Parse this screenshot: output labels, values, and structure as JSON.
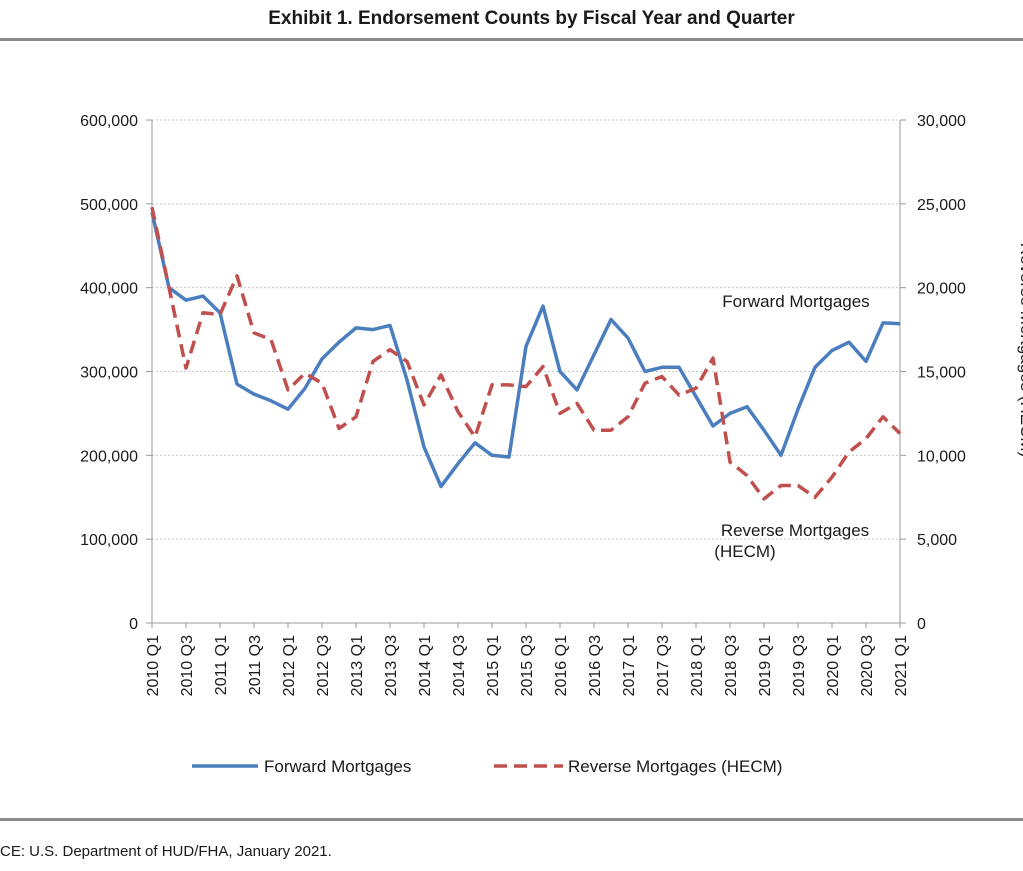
{
  "page": {
    "title": "Exhibit 1. Endorsement Counts by Fiscal Year and Quarter",
    "source": "CE: U.S. Department of HUD/FHA, January 2021."
  },
  "chart_data": {
    "type": "line",
    "title": "Exhibit 1. Endorsement Counts by Fiscal Year and Quarter",
    "x": [
      "2010 Q1",
      "2010 Q2",
      "2010 Q3",
      "2010 Q4",
      "2011 Q1",
      "2011 Q2",
      "2011 Q3",
      "2011 Q4",
      "2012 Q1",
      "2012 Q2",
      "2012 Q3",
      "2012 Q4",
      "2013 Q1",
      "2013 Q2",
      "2013 Q3",
      "2013 Q4",
      "2014 Q1",
      "2014 Q2",
      "2014 Q3",
      "2014 Q4",
      "2015 Q1",
      "2015 Q2",
      "2015 Q3",
      "2015 Q4",
      "2016 Q1",
      "2016 Q2",
      "2016 Q3",
      "2016 Q4",
      "2017 Q1",
      "2017 Q2",
      "2017 Q3",
      "2017 Q4",
      "2018 Q1",
      "2018 Q2",
      "2018 Q3",
      "2018 Q4",
      "2019 Q1",
      "2019 Q2",
      "2019 Q3",
      "2019 Q4",
      "2020 Q1",
      "2020 Q2",
      "2020 Q3",
      "2020 Q4",
      "2021 Q1"
    ],
    "tick_labels": [
      "2010 Q1",
      "2010 Q3",
      "2011 Q1",
      "2011 Q3",
      "2012 Q1",
      "2012 Q3",
      "2013 Q1",
      "2013 Q3",
      "2014 Q1",
      "2014 Q3",
      "2015 Q1",
      "2015 Q3",
      "2016 Q1",
      "2016 Q3",
      "2017 Q1",
      "2017 Q3",
      "2018 Q1",
      "2018 Q3",
      "2019 Q1",
      "2019 Q3",
      "2020 Q1",
      "2020 Q3",
      "2021 Q1"
    ],
    "series": [
      {
        "name": "Forward Mortgages",
        "axis": "left",
        "color": "#4a7ebf",
        "style": "solid",
        "values": [
          490000,
          400000,
          385000,
          390000,
          370000,
          285000,
          273000,
          265000,
          255000,
          280000,
          315000,
          335000,
          352000,
          350000,
          355000,
          290000,
          210000,
          163000,
          190000,
          215000,
          200000,
          198000,
          330000,
          378000,
          300000,
          278000,
          320000,
          362000,
          340000,
          300000,
          305000,
          305000,
          270000,
          235000,
          250000,
          258000,
          230000,
          200000,
          255000,
          305000,
          325000,
          335000,
          312000,
          358000,
          357000
        ]
      },
      {
        "name": "Reverse Mortgages (HECM)",
        "axis": "right",
        "color": "#c0504d",
        "style": "dashed",
        "values": [
          24800,
          20000,
          15200,
          18500,
          18400,
          20700,
          17300,
          16900,
          13900,
          14900,
          14300,
          11600,
          12300,
          15600,
          16300,
          15600,
          13000,
          14800,
          12600,
          11100,
          14200,
          14200,
          14100,
          15300,
          12500,
          13100,
          11500,
          11500,
          12300,
          14300,
          14700,
          13600,
          14000,
          15800,
          9600,
          8800,
          7400,
          8200,
          8200,
          7500,
          8700,
          10200,
          11000,
          12300,
          11300
        ]
      }
    ],
    "left_axis": {
      "range": [
        0,
        600000
      ],
      "ticks": [
        "0",
        "100,000",
        "200,000",
        "300,000",
        "400,000",
        "500,000",
        "600,000"
      ]
    },
    "right_axis": {
      "label": "Reverse Mortgages (HECM)",
      "range": [
        0,
        30000
      ],
      "ticks": [
        "0",
        "5,000",
        "10,000",
        "15,000",
        "20,000",
        "25,000",
        "30,000"
      ]
    },
    "annotations": [
      "Forward Mortgages",
      "Reverse Mortgages",
      "(HECM)"
    ],
    "grid": true,
    "legend": "bottom",
    "legend_entries": [
      "Forward Mortgages",
      "Reverse Mortgages (HECM)"
    ]
  }
}
